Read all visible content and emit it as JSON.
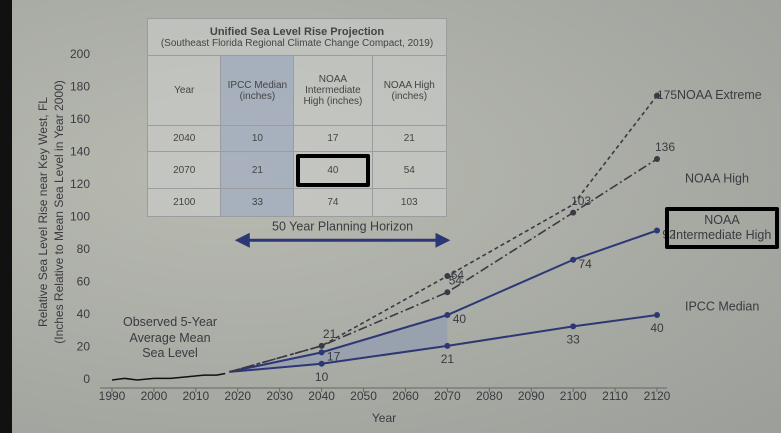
{
  "chart_data": {
    "type": "line",
    "xlabel": "Year",
    "ylabel": [
      "Relative Sea Level Rise near Key West, FL",
      "(Inches Relative to Mean Sea Level in Year 2000)"
    ],
    "xlim": [
      1990,
      2120
    ],
    "ylim": [
      0,
      200
    ],
    "xticks": [
      1990,
      2000,
      2010,
      2020,
      2030,
      2040,
      2050,
      2060,
      2070,
      2080,
      2090,
      2100,
      2110,
      2120
    ],
    "yticks": [
      0,
      20,
      40,
      60,
      80,
      100,
      120,
      140,
      160,
      180,
      200
    ],
    "grid": false,
    "observed": {
      "name": "Observed 5-Year Average Mean Sea Level",
      "color": "#111111",
      "x": [
        1990,
        1993,
        1996,
        2000,
        2004,
        2008,
        2012,
        2015,
        2017
      ],
      "values": [
        0,
        1,
        0,
        1,
        1,
        2,
        3,
        3,
        4
      ]
    },
    "series": [
      {
        "name": "IPCC Median",
        "color": "#2e3775",
        "style": "solid",
        "x": [
          2018,
          2040,
          2070,
          2100,
          2120
        ],
        "values": [
          5,
          10,
          21,
          33,
          40
        ],
        "value_labels": [
          null,
          "10",
          "21",
          "33",
          "40"
        ]
      },
      {
        "name": "NOAA Intermediate High",
        "color": "#2e3775",
        "style": "solid",
        "highlighted": true,
        "x": [
          2018,
          2040,
          2070,
          2100,
          2120
        ],
        "values": [
          5,
          17,
          40,
          74,
          92
        ],
        "value_labels": [
          null,
          "17",
          "40",
          "74",
          "92"
        ]
      },
      {
        "name": "NOAA High",
        "color": "#3a3a44",
        "style": "dashdot",
        "x": [
          2018,
          2040,
          2070,
          2100,
          2120
        ],
        "values": [
          5,
          21,
          54,
          103,
          136
        ],
        "value_labels": [
          null,
          "21",
          "54",
          "103",
          "136"
        ]
      },
      {
        "name": "NOAA Extreme",
        "color": "#3a3a44",
        "style": "dashed",
        "x": [
          2018,
          2040,
          2070,
          2100,
          2120
        ],
        "values": [
          5,
          21,
          64,
          108,
          175
        ],
        "value_labels": [
          null,
          null,
          "64",
          null,
          "175"
        ]
      }
    ],
    "horizon": {
      "label": "50 Year Planning Horizon",
      "x": [
        2020,
        2070
      ]
    }
  },
  "table": {
    "title": "Unified Sea Level Rise Projection",
    "subtitle": "(Southeast Florida Regional Climate Change Compact, 2019)",
    "headers": [
      "Year",
      "IPCC Median (inches)",
      "NOAA Intermediate High (inches)",
      "NOAA High (inches)"
    ],
    "rows": [
      [
        "2040",
        "10",
        "17",
        "21"
      ],
      [
        "2070",
        "21",
        "40",
        "54"
      ],
      [
        "2100",
        "33",
        "74",
        "103"
      ]
    ],
    "highlight": {
      "row": 1,
      "col": 2
    }
  }
}
